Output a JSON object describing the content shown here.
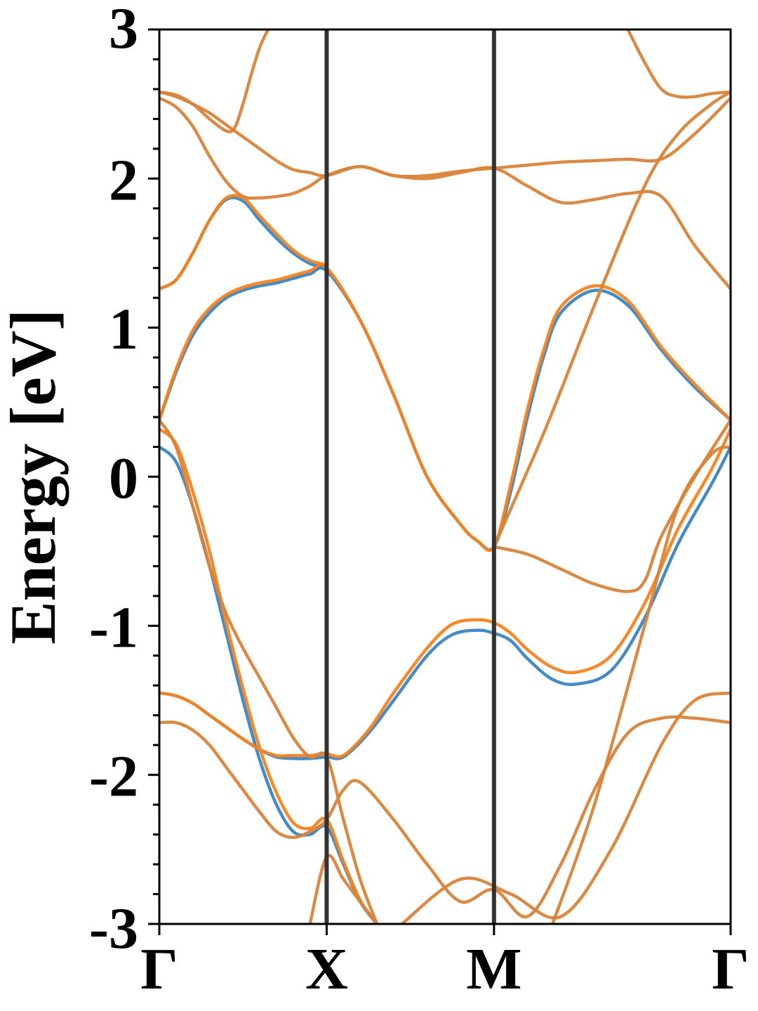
{
  "chart_data": {
    "type": "line",
    "ylabel": "Energy [eV]",
    "xlabel": "",
    "ylim": [
      -3,
      3
    ],
    "y_ticks": [
      {
        "value": 3,
        "label": "3"
      },
      {
        "value": 2,
        "label": "2"
      },
      {
        "value": 1,
        "label": "1"
      },
      {
        "value": 0,
        "label": "0"
      },
      {
        "value": -1,
        "label": "-1"
      },
      {
        "value": -2,
        "label": "-2"
      },
      {
        "value": -3,
        "label": "-3"
      }
    ],
    "y_minor_step": 0.2,
    "kpath": [
      {
        "label": "Γ",
        "position": 0.0
      },
      {
        "label": "X",
        "position": 1.0
      },
      {
        "label": "M",
        "position": 2.0
      },
      {
        "label": "Γ",
        "position": 3.414
      }
    ],
    "grid": false,
    "legend": "none",
    "colors": {
      "series_a": "#3b86c4",
      "series_b": "#f5831f",
      "overlap": "#d8843a",
      "symmetry_line": "#333333"
    },
    "series": [
      {
        "color": "#3b86c4",
        "bands": [
          {
            "x": [
              0,
              0.1,
              0.2,
              0.3,
              0.4,
              0.5,
              0.6,
              0.7,
              0.8,
              0.9,
              1.0,
              1.1,
              1.25,
              1.4,
              1.6,
              1.75,
              1.9,
              2.0,
              2.1,
              2.2,
              2.35,
              2.5,
              2.7,
              2.9,
              3.1,
              3.3,
              3.414
            ],
            "y": [
              -1.45,
              -1.47,
              -1.52,
              -1.6,
              -1.68,
              -1.76,
              -1.83,
              -1.88,
              -1.89,
              -1.89,
              -1.88,
              -1.88,
              -1.72,
              -1.5,
              -1.2,
              -1.06,
              -1.03,
              -1.05,
              -1.1,
              -1.22,
              -1.36,
              -1.39,
              -1.3,
              -0.95,
              -0.45,
              -0.05,
              0.2
            ]
          },
          {
            "x": [
              0,
              0.1,
              0.2,
              0.3,
              0.4,
              0.5,
              0.6,
              0.7,
              0.8,
              0.9,
              1.0,
              1.1,
              1.2,
              1.3
            ],
            "y": [
              0.2,
              0.1,
              -0.2,
              -0.6,
              -1.05,
              -1.5,
              -1.9,
              -2.2,
              -2.38,
              -2.4,
              -2.35,
              -2.6,
              -2.85,
              -3.0
            ]
          },
          {
            "x": [
              0,
              0.1,
              0.2,
              0.3,
              0.4,
              0.5,
              0.6,
              0.7,
              0.8,
              0.9,
              1.0,
              1.2,
              1.4,
              1.6,
              1.8,
              1.9,
              2.0,
              2.1,
              2.2,
              2.3,
              2.4,
              2.6,
              2.8,
              3.0,
              3.2,
              3.414
            ],
            "y": [
              0.38,
              0.7,
              0.95,
              1.1,
              1.2,
              1.25,
              1.28,
              1.3,
              1.33,
              1.36,
              1.38,
              1.05,
              0.55,
              0.0,
              -0.32,
              -0.43,
              -0.47,
              -0.1,
              0.4,
              0.82,
              1.1,
              1.25,
              1.15,
              0.85,
              0.6,
              0.38
            ]
          },
          {
            "x": [
              0,
              0.1,
              0.2,
              0.3,
              0.4,
              0.5,
              0.6,
              0.7,
              0.8,
              0.9,
              1.0
            ],
            "y": [
              1.26,
              1.32,
              1.5,
              1.72,
              1.86,
              1.85,
              1.72,
              1.6,
              1.5,
              1.43,
              1.4
            ]
          }
        ]
      },
      {
        "color": "#f5831f",
        "bands": [
          {
            "x": [
              0,
              0.1,
              0.2,
              0.3,
              0.4,
              0.5,
              0.6,
              0.7,
              0.8,
              0.9,
              1.0,
              1.1,
              1.25,
              1.4,
              1.6,
              1.75,
              1.9,
              2.0,
              2.1,
              2.2,
              2.35,
              2.5,
              2.7,
              2.9,
              3.1,
              3.3,
              3.414
            ],
            "y": [
              -1.45,
              -1.47,
              -1.52,
              -1.6,
              -1.68,
              -1.76,
              -1.83,
              -1.87,
              -1.87,
              -1.87,
              -1.86,
              -1.87,
              -1.7,
              -1.45,
              -1.15,
              -0.99,
              -0.96,
              -0.98,
              -1.05,
              -1.16,
              -1.28,
              -1.31,
              -1.2,
              -0.85,
              -0.35,
              0.05,
              0.32
            ]
          },
          {
            "x": [
              0,
              0.1,
              0.2,
              0.3,
              0.4,
              0.5,
              0.6,
              0.7,
              0.8,
              0.9,
              1.0,
              1.1,
              1.2,
              1.3
            ],
            "y": [
              0.32,
              0.22,
              -0.1,
              -0.5,
              -0.98,
              -1.42,
              -1.82,
              -2.12,
              -2.32,
              -2.36,
              -2.3,
              -2.58,
              -2.84,
              -3.0
            ]
          },
          {
            "x": [
              0,
              0.1,
              0.2,
              0.3,
              0.4,
              0.5,
              0.6,
              0.7,
              0.8,
              0.9,
              1.0,
              1.2,
              1.4,
              1.6,
              1.8,
              1.9,
              2.0,
              2.1,
              2.2,
              2.3,
              2.4,
              2.6,
              2.8,
              3.0,
              3.2,
              3.414
            ],
            "y": [
              0.38,
              0.72,
              0.98,
              1.13,
              1.22,
              1.27,
              1.3,
              1.32,
              1.35,
              1.38,
              1.4,
              1.05,
              0.55,
              0.0,
              -0.32,
              -0.43,
              -0.47,
              -0.05,
              0.45,
              0.86,
              1.14,
              1.28,
              1.18,
              0.87,
              0.62,
              0.38
            ]
          },
          {
            "x": [
              0,
              0.1,
              0.2,
              0.3,
              0.4,
              0.5,
              0.6,
              0.7,
              0.8,
              0.9,
              1.0
            ],
            "y": [
              1.26,
              1.32,
              1.5,
              1.72,
              1.87,
              1.87,
              1.75,
              1.63,
              1.52,
              1.45,
              1.42
            ]
          }
        ]
      },
      {
        "color": "#d8843a",
        "bands": [
          {
            "x": [
              0,
              0.1,
              0.2,
              0.3,
              0.4,
              0.5,
              0.6,
              0.7,
              0.8,
              0.9,
              1.0,
              1.1,
              1.2,
              1.4,
              1.6,
              1.8,
              2.0,
              2.2,
              2.4,
              2.6,
              2.8,
              3.0,
              3.2,
              3.414
            ],
            "y": [
              -1.65,
              -1.65,
              -1.7,
              -1.8,
              -1.95,
              -2.1,
              -2.25,
              -2.38,
              -2.42,
              -2.38,
              -2.3,
              -2.1,
              -2.05,
              -2.3,
              -2.6,
              -2.85,
              -2.77,
              -2.95,
              -2.6,
              -2.1,
              -1.72,
              -1.62,
              -1.62,
              -1.65
            ]
          },
          {
            "x": [
              0,
              0.1,
              0.2,
              0.3,
              0.4,
              0.5,
              0.6,
              0.7,
              0.8,
              0.9,
              1.0,
              1.1,
              1.2,
              1.3
            ],
            "y": [
              0.38,
              0.2,
              -0.2,
              -0.6,
              -0.92,
              -1.15,
              -1.35,
              -1.55,
              -1.75,
              -1.88,
              -1.88,
              -2.3,
              -2.7,
              -3.0
            ]
          },
          {
            "x": [
              0,
              0.1,
              0.2,
              0.3,
              0.4,
              0.5,
              0.6,
              0.7,
              0.8,
              0.9,
              1.0,
              1.2,
              1.4,
              1.6,
              1.8,
              2.0,
              2.2,
              2.4,
              2.6,
              2.8,
              3.0,
              3.2,
              3.414
            ],
            "y": [
              2.54,
              2.48,
              2.35,
              2.15,
              1.98,
              1.88,
              1.87,
              1.88,
              1.9,
              1.95,
              2.02,
              2.08,
              2.02,
              2.02,
              2.05,
              2.07,
              2.09,
              2.11,
              2.12,
              2.13,
              2.13,
              2.3,
              2.54
            ]
          },
          {
            "x": [
              0,
              0.1,
              0.2,
              0.3,
              0.4,
              0.5,
              0.6,
              0.7,
              0.8,
              0.9,
              1.0,
              1.2,
              1.4,
              1.6,
              1.8,
              2.0,
              2.2,
              2.4,
              2.6,
              2.8,
              3.0,
              3.2,
              3.414
            ],
            "y": [
              2.58,
              2.55,
              2.5,
              2.44,
              2.36,
              2.28,
              2.2,
              2.12,
              2.06,
              2.04,
              2.02,
              2.08,
              2.02,
              2.0,
              2.04,
              2.07,
              1.95,
              1.84,
              1.86,
              1.9,
              1.88,
              1.55,
              1.26
            ]
          },
          {
            "x": [
              0,
              0.1,
              0.2,
              0.3,
              0.4,
              0.45,
              0.5,
              0.55,
              0.6,
              0.65
            ],
            "y": [
              2.58,
              2.56,
              2.5,
              2.4,
              2.32,
              2.34,
              2.5,
              2.7,
              2.88,
              3.0
            ]
          },
          {
            "x": [
              2.0,
              2.2,
              2.4,
              2.6,
              2.8,
              2.9,
              3.0,
              3.2,
              3.414
            ],
            "y": [
              -0.47,
              -0.52,
              -0.62,
              -0.72,
              -0.77,
              -0.7,
              -0.4,
              0.0,
              0.38
            ]
          },
          {
            "x": [
              1.45,
              1.8,
              2.1,
              2.4,
              2.7,
              3.0,
              3.2,
              3.414
            ],
            "y": [
              -3.0,
              -2.7,
              -2.8,
              -2.95,
              -2.5,
              -1.8,
              -1.5,
              -1.45
            ]
          },
          {
            "x": [
              0.9,
              1.0,
              1.1,
              1.2,
              1.3
            ],
            "y": [
              -3.0,
              -2.55,
              -2.7,
              -2.85,
              -3.0
            ]
          },
          {
            "x": [
              2.35,
              2.6,
              2.9,
              3.1,
              3.3,
              3.414
            ],
            "y": [
              -3.0,
              -2.2,
              -1.0,
              -0.2,
              0.15,
              0.2
            ]
          },
          {
            "x": [
              2.0,
              2.3,
              2.6,
              2.9,
              3.1,
              3.3,
              3.414
            ],
            "y": [
              -0.47,
              0.3,
              1.15,
              1.95,
              2.3,
              2.5,
              2.58
            ]
          },
          {
            "x": [
              2.8,
              2.9,
              3.0,
              3.1,
              3.2,
              3.3,
              3.414
            ],
            "y": [
              3.0,
              2.78,
              2.6,
              2.55,
              2.55,
              2.57,
              2.58
            ]
          }
        ]
      }
    ]
  }
}
